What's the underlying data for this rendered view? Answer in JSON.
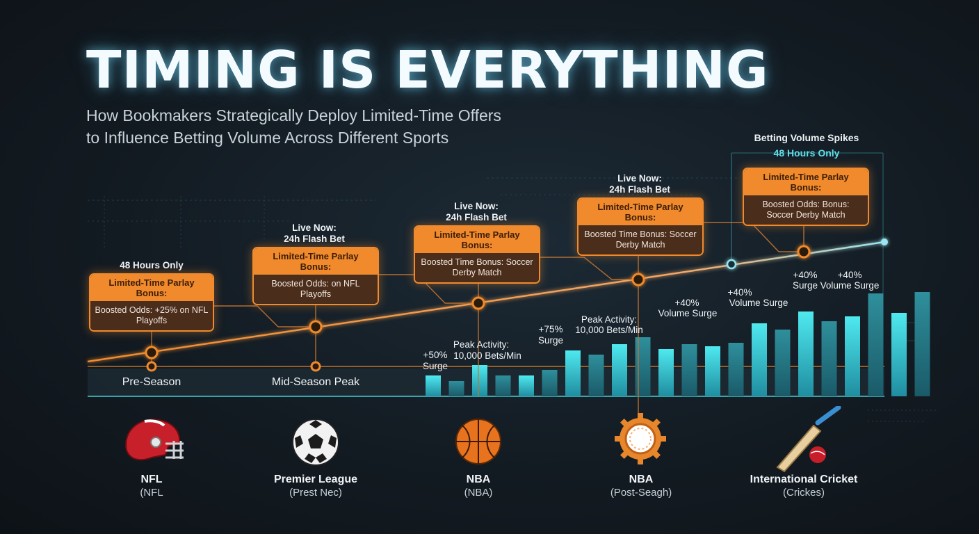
{
  "title": "TIMING IS EVERYTHING",
  "subtitle_line1": "How Bookmakers Strategically Deploy Limited-Time Offers",
  "subtitle_line2": "to Influence Betting Volume Across Different Sports",
  "callouts": {
    "spikes_title": "Betting Volume Spikes",
    "spikes_sub": "48 Hours Only",
    "hours48": "48 Hours Only",
    "livenow1": "Live Now:",
    "flash1": "24h Flash Bet",
    "livenow2": "Live Now:",
    "flash2": "24h Flash Bet",
    "livenow3": "Live Now:",
    "flash3": "24h Flash Bet"
  },
  "offers": [
    {
      "head": "Limited-Time Parlay Bonus:",
      "body": "Boosted Odds: +25% on NFL Playoffs"
    },
    {
      "head": "Limited-Time Parlay Bonus:",
      "body": "Boosted Odds: on NFL Playoffs"
    },
    {
      "head": "Limited-Time Parlay Bonus:",
      "body": "Boosted Time Bonus: Soccer Derby Match"
    },
    {
      "head": "Limited-Time Parlay Bonus:",
      "body": "Boosted Time Bonus: Soccer Derby Match"
    },
    {
      "head": "Limited-Time Parlay Bonus:",
      "body": "Boosted Odds: Bonus: Soccer Derby Match"
    }
  ],
  "bar_labels": {
    "a1": "+50%",
    "a2": "Surge",
    "b1": "Peak Activity:",
    "b2": "10,000 Bets/Min",
    "c1": "+75%",
    "c2": "Surge",
    "d1": "Peak Activity:",
    "d2": "10,000 Bets/Min",
    "e1": "+40%",
    "e2": "Volume Surge",
    "f1": "+40%",
    "f2": "Volume Surge",
    "g1": "+40%",
    "g2": "Surge",
    "h1": "+40%",
    "h2": "Volume Surge"
  },
  "phases": [
    "Pre-Season",
    "Mid-Season Peak"
  ],
  "sports": [
    {
      "name": "NFL",
      "sub": "(NFL",
      "icon": "football-helmet-icon"
    },
    {
      "name": "Premier League",
      "sub": "(Prest Nec)",
      "icon": "soccer-ball-icon"
    },
    {
      "name": "NBA",
      "sub": "(NBA)",
      "icon": "basketball-icon"
    },
    {
      "name": "NBA",
      "sub": "(Post-Seagh)",
      "icon": "gear-badge-icon"
    },
    {
      "name": "International Cricket",
      "sub": "(Crickes)",
      "icon": "cricket-bat-icon"
    }
  ],
  "colors": {
    "accent_orange": "#f08a2c",
    "accent_cyan": "#4fe3ea",
    "background": "#131b22"
  },
  "chart_data": {
    "type": "bar",
    "description_values": "relative betting volume bars (arbitrary units, 0-1 scale)",
    "values": [
      0.3,
      0.22,
      0.45,
      0.3,
      0.3,
      0.38,
      0.66,
      0.6,
      0.75,
      0.85,
      0.68,
      0.75,
      0.72,
      0.77,
      1.05,
      0.96,
      1.22,
      1.08,
      1.15,
      1.48,
      1.2,
      1.5
    ],
    "trend_line": [
      [
        0.0,
        0.0
      ],
      [
        1.0,
        1.0
      ]
    ],
    "grid": false
  }
}
